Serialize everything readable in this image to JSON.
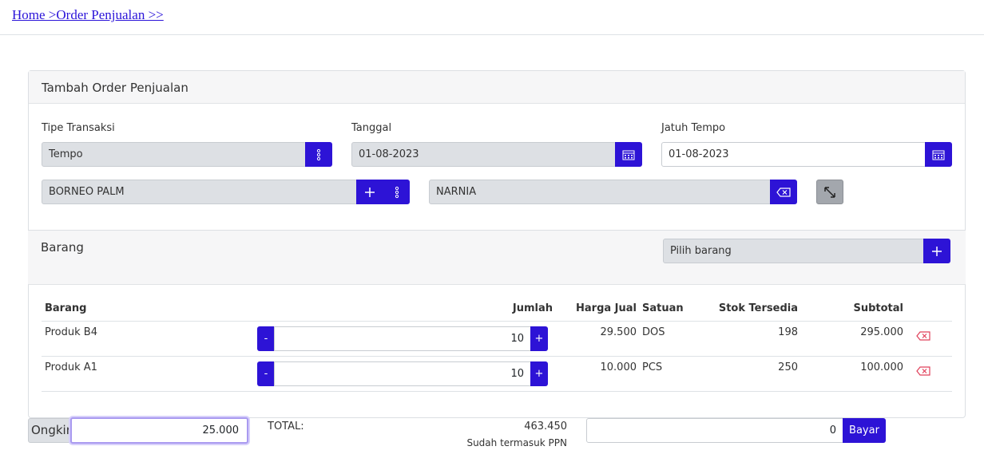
{
  "breadcrumb": {
    "text": "Home >Order Penjualan >>"
  },
  "form": {
    "title": "Tambah Order Penjualan",
    "tipe_transaksi": {
      "label": "Tipe Transaksi",
      "value": "Tempo",
      "icon": "vertical-dots-icon"
    },
    "tanggal": {
      "label": "Tanggal",
      "value": "01-08-2023",
      "icon": "calendar-icon"
    },
    "jatuh_tempo": {
      "label": "Jatuh Tempo",
      "value": "01-08-2023",
      "icon": "calendar-icon"
    },
    "customer": {
      "value": "BORNEO PALM",
      "add_icon": "plus-icon",
      "menu_icon": "vertical-dots-icon"
    },
    "sales": {
      "value": "NARNIA",
      "clear_icon": "backspace-icon"
    },
    "expand_icon": "expand-arrows-icon"
  },
  "barang_section": {
    "title": "Barang",
    "picker_placeholder": "Pilih barang",
    "add_icon": "plus-icon"
  },
  "table": {
    "headers": {
      "barang": "Barang",
      "jumlah": "Jumlah",
      "harga_jual": "Harga Jual",
      "satuan": "Satuan",
      "stok": "Stok Tersedia",
      "subtotal": "Subtotal"
    },
    "rows": [
      {
        "barang": "Produk B4",
        "jumlah": "10",
        "harga_jual": "29.500",
        "satuan": "DOS",
        "stok": "198",
        "subtotal": "295.000"
      },
      {
        "barang": "Produk A1",
        "jumlah": "10",
        "harga_jual": "10.000",
        "satuan": "PCS",
        "stok": "250",
        "subtotal": "100.000"
      }
    ],
    "minus_label": "-",
    "plus_label": "+"
  },
  "footer": {
    "ongkir_label": "Ongkir",
    "ongkir_value": "25.000",
    "total_label": "TOTAL:",
    "total_value": "463.450",
    "ppn_note": "Sudah termasuk PPN",
    "bayar_value": "0",
    "bayar_button": "Bayar"
  },
  "colors": {
    "accent": "#2d13d6",
    "danger": "#e0405a",
    "readonly_bg": "#dde0e4"
  }
}
